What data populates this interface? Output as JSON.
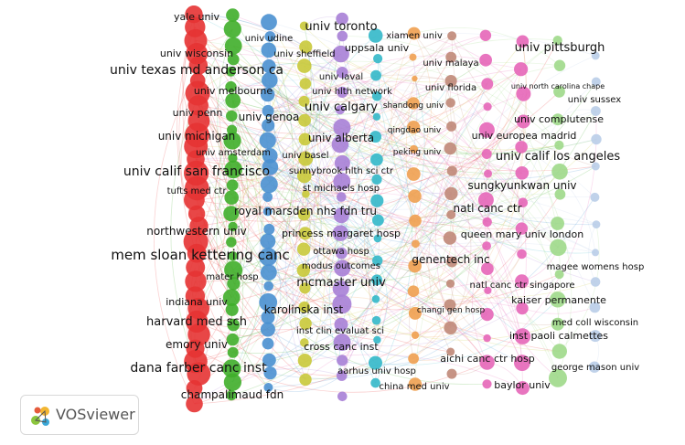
{
  "logo": {
    "text": "VOSviewer",
    "icon": "vosviewer-logo-icon"
  },
  "colors": {
    "red": "#e63333",
    "green": "#3fae2a",
    "blue": "#4a90d0",
    "olive": "#c9c93a",
    "purple": "#a77fd6",
    "cyan": "#33b8c9",
    "orange": "#f0a050",
    "brown": "#c08878",
    "pink": "#e666b8",
    "lightgreen": "#9ed98a",
    "lightblue": "#b9cde8"
  },
  "labels": {
    "red": [
      "yale univ",
      "univ wisconsin",
      "univ texas md anderson ca",
      "univ penn",
      "univ michigan",
      "univ amsterdam",
      "univ calif san francisco",
      "tufts med ctr",
      "northwestern univ",
      "mem sloan kettering canc",
      "mater hosp",
      "indiana univ",
      "harvard med sch",
      "emory univ",
      "dana farber canc inst"
    ],
    "green": [
      "univ melbourne",
      "univ genoa",
      "royal marsden nhs fdn tru",
      "champalimaud fdn"
    ],
    "blue": [
      "univ udine",
      "karolinska inst",
      "inst clin evaluat sci"
    ],
    "olive": [
      "univ sheffield",
      "univ basel",
      "st michaels hosp",
      "princess margaret hosp",
      "ottawa hosp",
      "modus outcomes",
      "cross canc inst"
    ],
    "purple": [
      "univ toronto",
      "univ laval",
      "univ hlth network",
      "univ calgary",
      "univ alberta",
      "sunnybrook hlth sci ctr",
      "mcmaster univ"
    ],
    "cyan": [
      "uppsala univ",
      "aarhus univ hosp",
      "china med univ"
    ],
    "orange": [
      "xiamen univ",
      "shandong univ",
      "qingdao univ",
      "peking univ",
      "changi gen hosp"
    ],
    "brown": [
      "univ malaya",
      "univ florida",
      "genentech inc"
    ],
    "pink": [
      "univ europea madrid",
      "sungkyunkwan univ",
      "natl canc ctr",
      "queen mary univ london",
      "natl canc ctr singapore",
      "inst paoli calmettes",
      "aichi canc ctr hosp",
      "baylor univ"
    ],
    "lightgreen": [
      "univ pittsburgh",
      "univ complutense",
      "univ calif los angeles",
      "magee womens hosp",
      "kaiser permanente",
      "george mason univ"
    ],
    "lightblue": [
      "univ north carolina chape",
      "univ sussex",
      "med coll wisconsin"
    ]
  }
}
